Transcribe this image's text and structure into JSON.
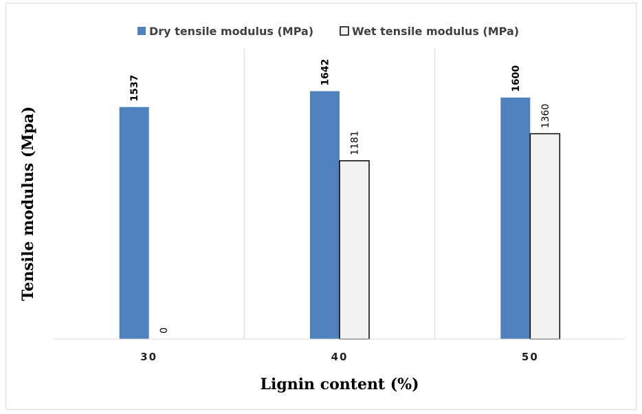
{
  "chart_data": {
    "type": "bar",
    "title": "",
    "xlabel": "Lignin content (%)",
    "ylabel": "Tensile modulus (Mpa)",
    "categories": [
      "30",
      "40",
      "50"
    ],
    "ylim": [
      0,
      1800
    ],
    "grid": "vertical",
    "legend": "top",
    "series": [
      {
        "name": "Dry tensile modulus (MPa)",
        "values": [
          1537,
          1642,
          1600
        ],
        "labels": [
          "1537",
          "1642",
          "1600"
        ],
        "color": "#4f81bd"
      },
      {
        "name": "Wet tensile modulus (MPa)",
        "values": [
          0,
          1181,
          1360
        ],
        "labels": [
          "0",
          "1181",
          "1360"
        ],
        "color": "#f2f2f2",
        "stroke": "#000000"
      }
    ]
  }
}
